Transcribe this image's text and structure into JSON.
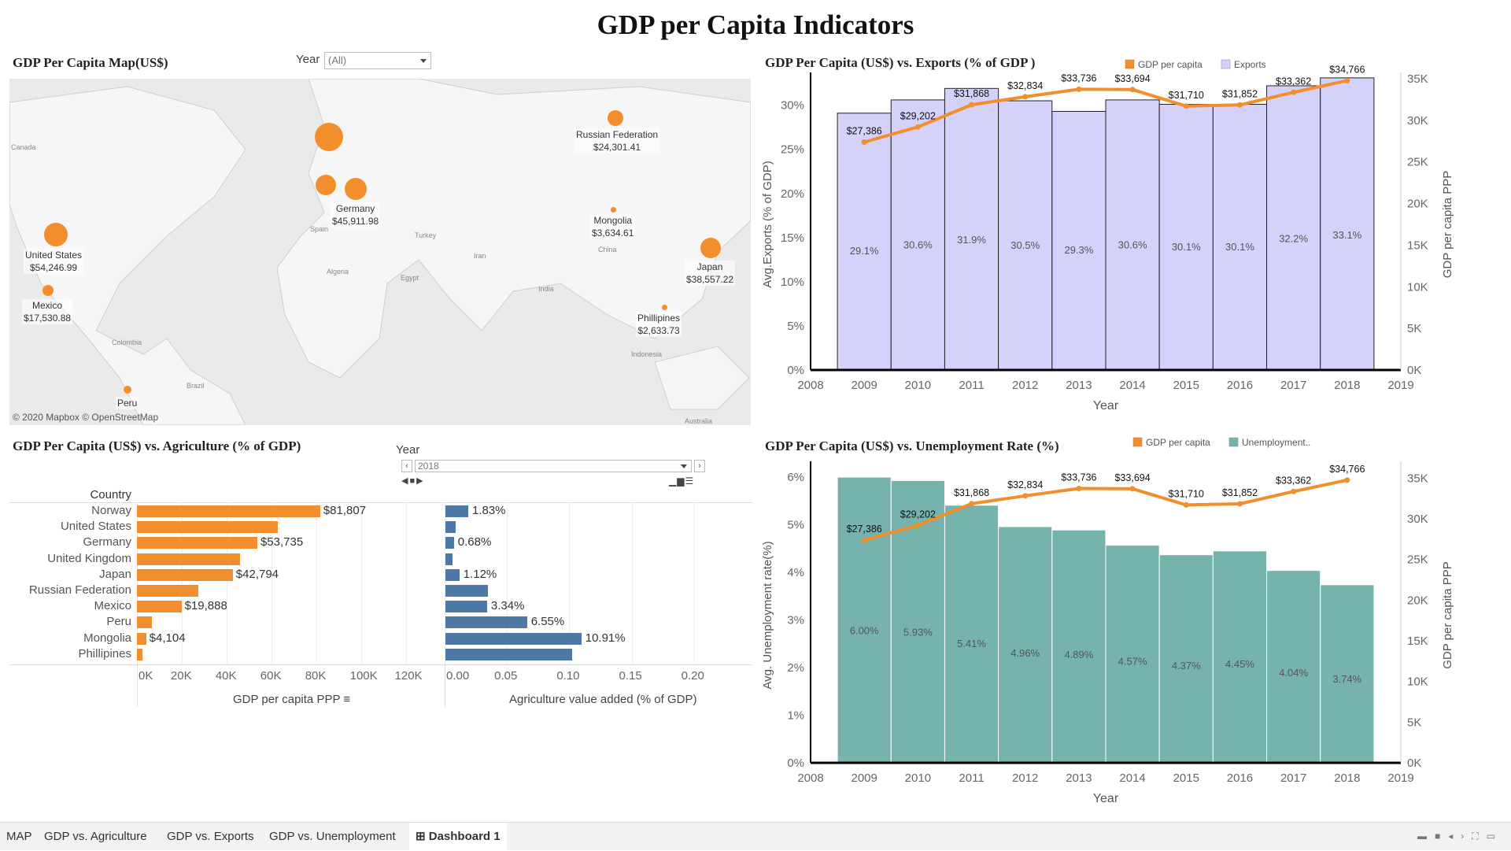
{
  "dashboard_title": "GDP per Capita Indicators",
  "colors": {
    "orange": "#f28e2b",
    "lavender": "#d4d1fb",
    "teal": "#76b3ad",
    "blue": "#4e79a7"
  },
  "map_panel": {
    "title": "GDP Per Capita Map(US$)",
    "filter_label": "Year",
    "filter_value": "(All)",
    "copyright": "© 2020 Mapbox © OpenStreetMap",
    "region_labels": {
      "canada": "Canada",
      "spain": "Spain",
      "turkey": "Turkey",
      "iran": "Iran",
      "algeria": "Algeria",
      "egypt": "Egypt",
      "india": "India",
      "china": "China",
      "colombia": "Colombia",
      "brazil": "Brazil",
      "indonesia": "Indonesia",
      "australia": "Australia"
    },
    "countries": [
      {
        "name": "Russian Federation",
        "value": "$24,301.41"
      },
      {
        "name": "Germany",
        "value": "$45,911.98"
      },
      {
        "name": "Mongolia",
        "value": "$3,634.61"
      },
      {
        "name": "United States",
        "value": "$54,246.99"
      },
      {
        "name": "Japan",
        "value": "$38,557.22"
      },
      {
        "name": "Mexico",
        "value": "$17,530.88"
      },
      {
        "name": "Phillipines",
        "value": "$2,633.73"
      },
      {
        "name": "Peru",
        "value": ""
      }
    ]
  },
  "agri_panel": {
    "title": "GDP Per Capita (US$) vs. Agriculture (% of GDP)",
    "year_label": "Year",
    "year_value": "2018",
    "country_header": "Country",
    "gdp_axis_label": "GDP per capita PPP",
    "agri_axis_label": "Agriculture value added (% of GDP)",
    "gdp_ticks": [
      "0K",
      "20K",
      "40K",
      "60K",
      "80K",
      "100K",
      "120K"
    ],
    "agri_ticks": [
      "0.00",
      "0.05",
      "0.10",
      "0.15",
      "0.20"
    ],
    "rows": [
      {
        "country": "Norway",
        "gdp": 81807,
        "gdp_label": "$81,807",
        "agri": 0.0183,
        "agri_label": "1.83%"
      },
      {
        "country": "United States",
        "gdp": 62800,
        "gdp_label": "",
        "agri": 0.0085,
        "agri_label": ""
      },
      {
        "country": "Germany",
        "gdp": 53735,
        "gdp_label": "$53,735",
        "agri": 0.0068,
        "agri_label": "0.68%"
      },
      {
        "country": "United Kingdom",
        "gdp": 45900,
        "gdp_label": "",
        "agri": 0.0055,
        "agri_label": ""
      },
      {
        "country": "Japan",
        "gdp": 42794,
        "gdp_label": "$42,794",
        "agri": 0.0112,
        "agri_label": "1.12%"
      },
      {
        "country": "Russian Federation",
        "gdp": 27500,
        "gdp_label": "",
        "agri": 0.034,
        "agri_label": ""
      },
      {
        "country": "Mexico",
        "gdp": 19888,
        "gdp_label": "$19,888",
        "agri": 0.0334,
        "agri_label": "3.34%"
      },
      {
        "country": "Peru",
        "gdp": 6800,
        "gdp_label": "",
        "agri": 0.0655,
        "agri_label": "6.55%"
      },
      {
        "country": "Mongolia",
        "gdp": 4104,
        "gdp_label": "$4,104",
        "agri": 0.1091,
        "agri_label": "10.91%"
      },
      {
        "country": "Phillipines",
        "gdp": 2600,
        "gdp_label": "",
        "agri": 0.1015,
        "agri_label": ""
      }
    ]
  },
  "chart_data": [
    {
      "type": "bar",
      "title": "GDP Per Capita (US$) vs. Exports (% of GDP )",
      "xlabel": "Year",
      "ylabel": "Avg.Exports (% of GDP)",
      "y2label": "GDP per capita PPP",
      "legend": [
        "GDP per capita",
        "Exports"
      ],
      "legend_position": "top",
      "x_ticks": [
        "2008",
        "2009",
        "2010",
        "2011",
        "2012",
        "2013",
        "2014",
        "2015",
        "2016",
        "2017",
        "2018",
        "2019"
      ],
      "y_ticks": [
        "0%",
        "5%",
        "10%",
        "15%",
        "20%",
        "25%",
        "30%"
      ],
      "y2_ticks": [
        "0K",
        "5K",
        "10K",
        "15K",
        "20K",
        "25K",
        "30K",
        "35K"
      ],
      "ylim": [
        0,
        0.33
      ],
      "y2lim": [
        0,
        35000
      ],
      "categories": [
        2009,
        2010,
        2011,
        2012,
        2013,
        2014,
        2015,
        2016,
        2017,
        2018
      ],
      "bars": [
        0.291,
        0.306,
        0.319,
        0.305,
        0.293,
        0.306,
        0.301,
        0.301,
        0.322,
        0.331
      ],
      "bar_labels": [
        "29.1%",
        "30.6%",
        "31.9%",
        "30.5%",
        "29.3%",
        "30.6%",
        "30.1%",
        "30.1%",
        "32.2%",
        "33.1%"
      ],
      "line": [
        27386,
        29202,
        31868,
        32834,
        33736,
        33694,
        31710,
        31852,
        33362,
        34766
      ],
      "line_labels": [
        "$27,386",
        "$29,202",
        "$31,868",
        "$32,834",
        "$33,736",
        "$33,694",
        "$31,710",
        "$31,852",
        "$33,362",
        "$34,766"
      ]
    },
    {
      "type": "bar",
      "title": "GDP Per Capita (US$) vs. Unemployment Rate (%)",
      "xlabel": "Year",
      "ylabel": "Avg. Unemployment rate(%)",
      "y2label": "GDP per capita PPP",
      "legend": [
        "GDP per capita",
        "Unemployment.."
      ],
      "legend_position": "top",
      "x_ticks": [
        "2008",
        "2009",
        "2010",
        "2011",
        "2012",
        "2013",
        "2014",
        "2015",
        "2016",
        "2017",
        "2018",
        "2019"
      ],
      "y_ticks": [
        "0%",
        "1%",
        "2%",
        "3%",
        "4%",
        "5%",
        "6%"
      ],
      "y2_ticks": [
        "0K",
        "5K",
        "10K",
        "15K",
        "20K",
        "25K",
        "30K",
        "35K"
      ],
      "ylim": [
        0,
        0.062
      ],
      "y2lim": [
        0,
        36300
      ],
      "categories": [
        2009,
        2010,
        2011,
        2012,
        2013,
        2014,
        2015,
        2016,
        2017,
        2018
      ],
      "bars": [
        0.06,
        0.0593,
        0.0541,
        0.0496,
        0.0489,
        0.0457,
        0.0437,
        0.0445,
        0.0404,
        0.0374
      ],
      "bar_labels": [
        "6.00%",
        "5.93%",
        "5.41%",
        "4.96%",
        "4.89%",
        "4.57%",
        "4.37%",
        "4.45%",
        "4.04%",
        "3.74%"
      ],
      "line": [
        27386,
        29202,
        31868,
        32834,
        33736,
        33694,
        31710,
        31852,
        33362,
        34766
      ],
      "line_labels": [
        "$27,386",
        "$29,202",
        "$31,868",
        "$32,834",
        "$33,736",
        "$33,694",
        "$31,710",
        "$31,852",
        "$33,362",
        "$34,766"
      ]
    }
  ],
  "tabs": [
    "MAP",
    "GDP vs. Agriculture",
    "GDP vs. Exports",
    "GDP vs. Unemployment",
    "Dashboard 1"
  ]
}
